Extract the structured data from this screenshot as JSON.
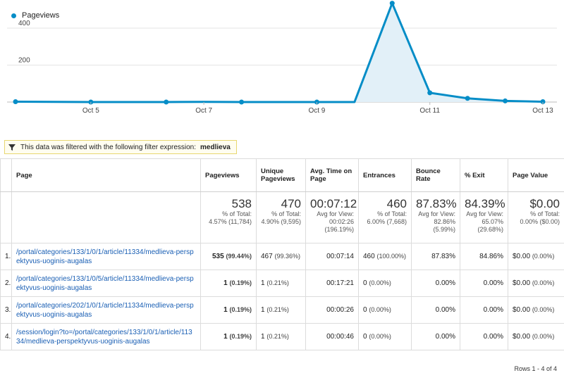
{
  "chart_data": {
    "type": "area",
    "legend": "Pageviews",
    "series": [
      {
        "name": "Pageviews",
        "values": [
          2,
          1,
          0,
          0,
          0,
          1,
          0,
          0,
          0,
          0,
          535,
          50,
          20,
          6,
          2
        ]
      }
    ],
    "x_ticks": [
      "Oct 5",
      "Oct 7",
      "Oct 9",
      "Oct 11",
      "Oct 13"
    ],
    "y_ticks": [
      200,
      400
    ],
    "ylim": [
      0,
      400
    ],
    "color": "#058dc7",
    "fill": "#e2f0f8",
    "grid": true
  },
  "filter": {
    "text": "This data was filtered with the following filter expression:",
    "expression": "medlieva"
  },
  "columns": {
    "page": "Page",
    "pageviews": "Pageviews",
    "unique": "Unique Pageviews",
    "avgtime": "Avg. Time on Page",
    "entrances": "Entrances",
    "bounce": "Bounce Rate",
    "exit": "% Exit",
    "value": "Page Value"
  },
  "totals": {
    "pageviews": {
      "value": "538",
      "sub1": "% of Total:",
      "sub2": "4.57% (11,784)"
    },
    "unique": {
      "value": "470",
      "sub1": "% of Total:",
      "sub2": "4.90% (9,595)"
    },
    "avgtime": {
      "value": "00:07:12",
      "sub1": "Avg for View:",
      "sub2": "00:02:26",
      "sub3": "(196.19%)"
    },
    "entrances": {
      "value": "460",
      "sub1": "% of Total:",
      "sub2": "6.00% (7,668)"
    },
    "bounce": {
      "value": "87.83%",
      "sub1": "Avg for View:",
      "sub2": "82.86%",
      "sub3": "(5.99%)"
    },
    "exit": {
      "value": "84.39%",
      "sub1": "Avg for View:",
      "sub2": "65.07%",
      "sub3": "(29.68%)"
    },
    "value": {
      "value": "$0.00",
      "sub1": "% of Total:",
      "sub2": "0.00% ($0.00)"
    }
  },
  "rows": [
    {
      "idx": "1.",
      "page": "/portal/categories/133/1/0/1/article/11334/medlieva-perspektyvus-uoginis-augalas",
      "pv": "535",
      "pv_pct": "(99.44%)",
      "up": "467",
      "up_pct": "(99.36%)",
      "time": "00:07:14",
      "ent": "460",
      "ent_pct": "(100.00%)",
      "bounce": "87.83%",
      "exit": "84.86%",
      "val": "$0.00",
      "val_pct": "(0.00%)"
    },
    {
      "idx": "2.",
      "page": "/portal/categories/133/1/0/5/article/11334/medlieva-perspektyvus-uoginis-augalas",
      "pv": "1",
      "pv_pct": "(0.19%)",
      "up": "1",
      "up_pct": "(0.21%)",
      "time": "00:17:21",
      "ent": "0",
      "ent_pct": "(0.00%)",
      "bounce": "0.00%",
      "exit": "0.00%",
      "val": "$0.00",
      "val_pct": "(0.00%)"
    },
    {
      "idx": "3.",
      "page": "/portal/categories/202/1/0/1/article/11334/medlieva-perspektyvus-uoginis-augalas",
      "pv": "1",
      "pv_pct": "(0.19%)",
      "up": "1",
      "up_pct": "(0.21%)",
      "time": "00:00:26",
      "ent": "0",
      "ent_pct": "(0.00%)",
      "bounce": "0.00%",
      "exit": "0.00%",
      "val": "$0.00",
      "val_pct": "(0.00%)"
    },
    {
      "idx": "4.",
      "page": "/session/login?to=/portal/categories/133/1/0/1/article/11334/medlieva-perspektyvus-uoginis-augalas",
      "pv": "1",
      "pv_pct": "(0.19%)",
      "up": "1",
      "up_pct": "(0.21%)",
      "time": "00:00:46",
      "ent": "0",
      "ent_pct": "(0.00%)",
      "bounce": "0.00%",
      "exit": "0.00%",
      "val": "$0.00",
      "val_pct": "(0.00%)"
    }
  ],
  "rows_info": "Rows 1 - 4 of 4"
}
